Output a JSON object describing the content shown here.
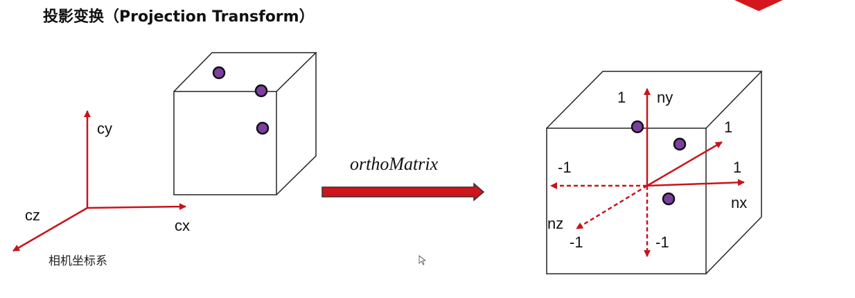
{
  "title": "投影变换（Projection Transform）",
  "accent_color": "#c8131a",
  "point_color": "#7b3fa0",
  "camera_space": {
    "caption": "相机坐标系",
    "axis_labels": {
      "x": "cx",
      "y": "cy",
      "z": "cz"
    }
  },
  "transform": {
    "label": "orthoMatrix"
  },
  "ndc_space": {
    "axis_labels": {
      "x": "nx",
      "y": "ny",
      "z": "nz"
    },
    "tick_labels": {
      "y_pos": "1",
      "y_neg": "-1",
      "x_pos": "1",
      "x_neg": "-1",
      "z_pos": "1",
      "z_neg": "-1"
    }
  }
}
